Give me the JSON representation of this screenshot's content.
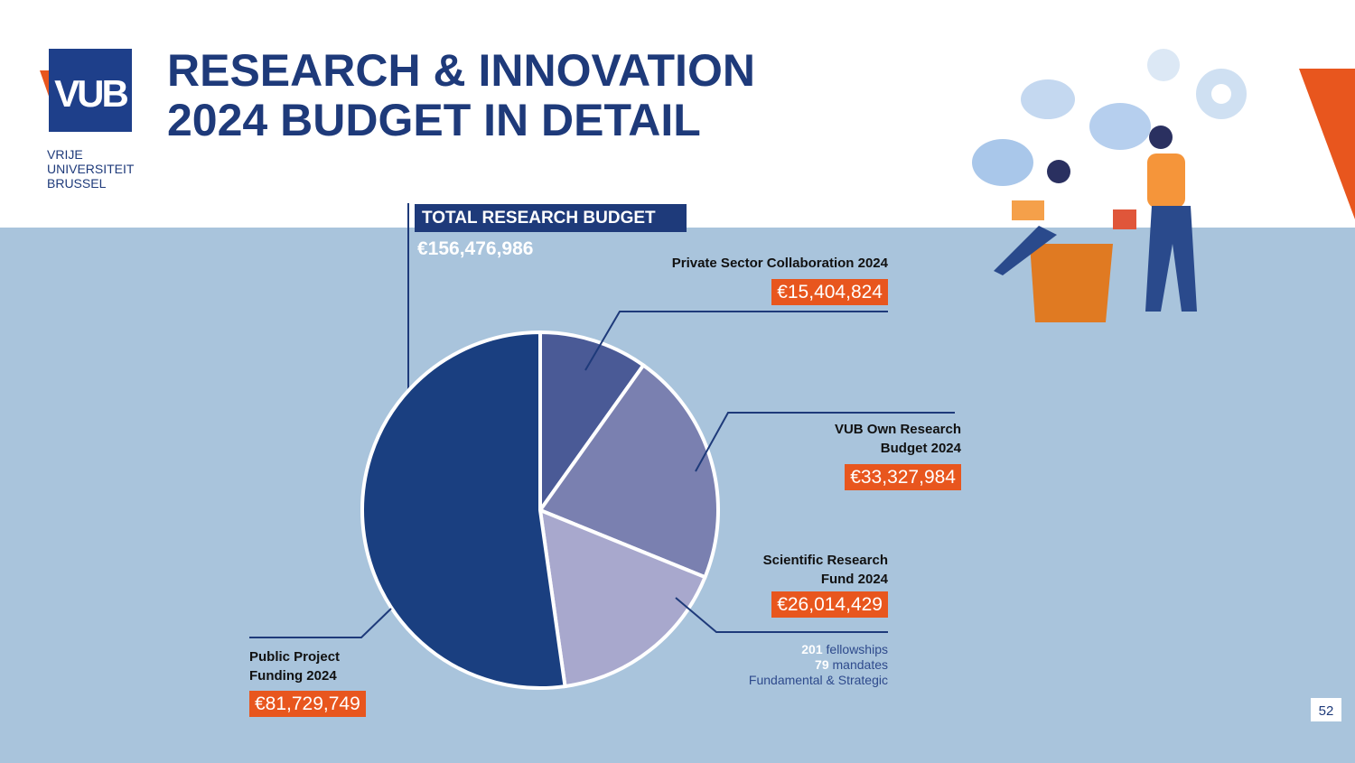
{
  "header": {
    "logo": "VUB",
    "university": [
      "VRIJE",
      "UNIVERSITEIT",
      "BRUSSEL"
    ],
    "title": [
      "RESEARCH & INNOVATION",
      "2024 BUDGET IN DETAIL"
    ]
  },
  "chart_data": {
    "type": "pie",
    "total_title": "TOTAL RESEARCH BUDGET",
    "total": "€156,476,986",
    "categories": [
      "Private Sector Collaboration 2024",
      "VUB Own Research Budget 2024",
      "Scientific Research Fund 2024",
      "Public Project Funding 2024"
    ],
    "values": [
      15404824,
      33327984,
      26014429,
      81729749
    ],
    "value_labels": [
      "€15,404,824",
      "€33,327,984",
      "€26,014,429",
      "€81,729,749"
    ],
    "colors": [
      "#4a5a96",
      "#7a80b0",
      "#a8a8cd",
      "#1a3f80"
    ],
    "notes": [
      {
        "count": 201,
        "text": "fellowships"
      },
      {
        "count": 79,
        "text": "mandates"
      },
      {
        "text": "Fundamental & Strategic"
      }
    ]
  },
  "page_number": 52
}
